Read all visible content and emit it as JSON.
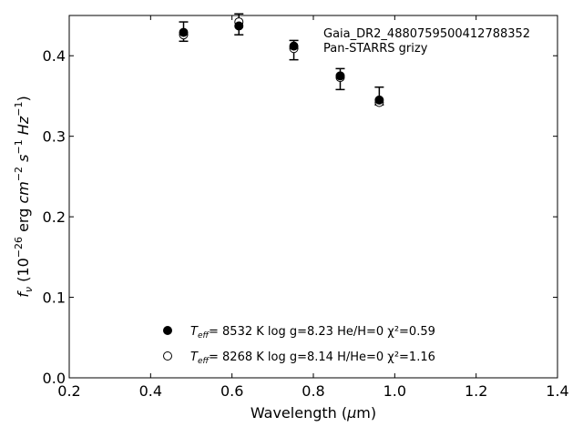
{
  "chart_data": {
    "type": "scatter",
    "title": "",
    "annotations": [
      "Gaia_DR2_4880759500412788352",
      "Pan-STARRS grizy"
    ],
    "xlabel": "Wavelength (μm)",
    "ylabel": "fν (10⁻²⁶ erg cm⁻² s⁻¹ Hz⁻¹)",
    "xlim": [
      0.2,
      1.4
    ],
    "ylim": [
      0.0,
      0.45
    ],
    "xticks": [
      "0.2",
      "0.4",
      "0.6",
      "0.8",
      "1.0",
      "1.2",
      "1.4"
    ],
    "yticks": [
      "0.0",
      "0.1",
      "0.2",
      "0.3",
      "0.4"
    ],
    "grid": false,
    "legend_position": "bottom-center",
    "observed": {
      "x": [
        0.481,
        0.617,
        0.752,
        0.866,
        0.962
      ],
      "y": [
        0.43,
        0.439,
        0.407,
        0.371,
        0.35
      ],
      "yerr": [
        0.012,
        0.013,
        0.012,
        0.013,
        0.011
      ]
    },
    "series": [
      {
        "name": "Teff= 8532 K log g=8.23 He/H=0 χ²=0.59",
        "marker": "filled-circle",
        "x": [
          0.481,
          0.617,
          0.752,
          0.866,
          0.962
        ],
        "y": [
          0.429,
          0.437,
          0.412,
          0.375,
          0.345
        ]
      },
      {
        "name": "Teff= 8268 K log g=8.14 H/He=0 χ²=1.16",
        "marker": "open-circle",
        "x": [
          0.481,
          0.617,
          0.752,
          0.866,
          0.962
        ],
        "y": [
          0.426,
          0.442,
          0.409,
          0.373,
          0.342
        ]
      }
    ]
  },
  "legend": {
    "entry1": {
      "teff": "8532",
      "rest": " K  log g=8.23  He/H=0  χ²=0.59"
    },
    "entry2": {
      "teff": "8268",
      "rest": " K  log g=8.14  H/He=0  χ²=1.16"
    }
  }
}
